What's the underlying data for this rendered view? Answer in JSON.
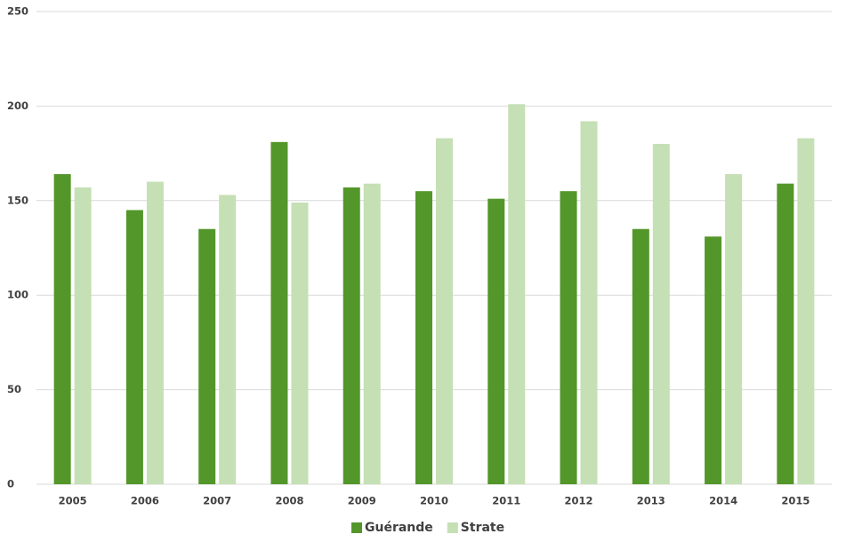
{
  "chart_data": {
    "type": "bar",
    "categories": [
      "2005",
      "2006",
      "2007",
      "2008",
      "2009",
      "2010",
      "2011",
      "2012",
      "2013",
      "2014",
      "2015"
    ],
    "series": [
      {
        "name": "Guérande",
        "color": "#53962a",
        "values": [
          164,
          145,
          135,
          181,
          157,
          155,
          151,
          155,
          135,
          131,
          159
        ]
      },
      {
        "name": "Strate",
        "color": "#c5e0b4",
        "values": [
          157,
          160,
          153,
          149,
          159,
          183,
          201,
          192,
          180,
          164,
          183
        ]
      }
    ],
    "ylim": [
      0,
      250
    ],
    "yticks": [
      0,
      50,
      100,
      150,
      200,
      250
    ],
    "grid": true,
    "legend": "bottom"
  }
}
